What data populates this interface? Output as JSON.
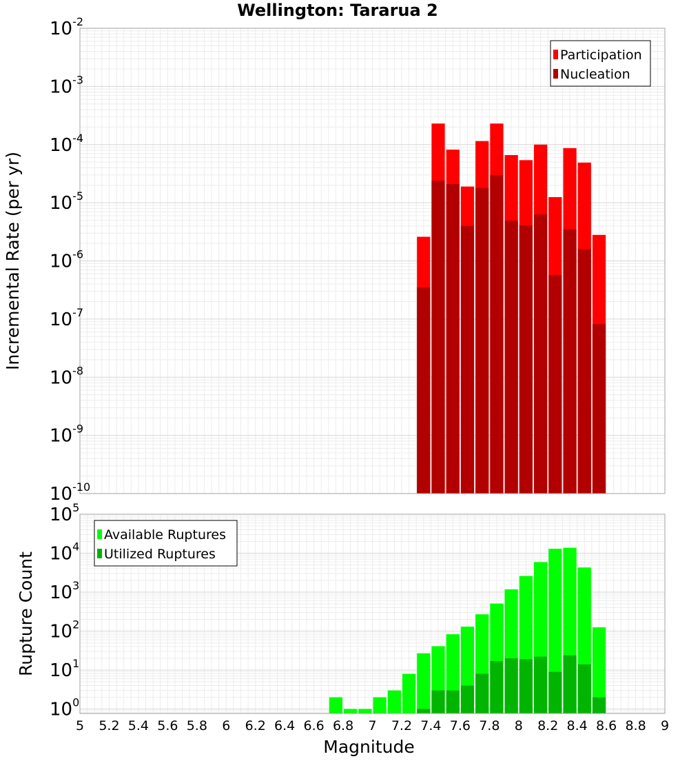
{
  "chart_data": [
    {
      "type": "bar",
      "title": "Wellington: Tararua 2",
      "ylabel": "Incremental Rate (per yr)",
      "xlabel": "",
      "xlim": [
        5,
        9
      ],
      "ylim": [
        1e-10,
        0.01
      ],
      "yscale": "log",
      "grid": true,
      "legend_placement": "top-right",
      "bar_width": 0.1,
      "ytick_labels": [
        {
          "base": "10",
          "exp": "-10"
        },
        {
          "base": "10",
          "exp": "-9"
        },
        {
          "base": "10",
          "exp": "-8"
        },
        {
          "base": "10",
          "exp": "-7"
        },
        {
          "base": "10",
          "exp": "-6"
        },
        {
          "base": "10",
          "exp": "-5"
        },
        {
          "base": "10",
          "exp": "-4"
        },
        {
          "base": "10",
          "exp": "-3"
        },
        {
          "base": "10",
          "exp": "-2"
        }
      ],
      "x": [
        7.35,
        7.45,
        7.55,
        7.65,
        7.75,
        7.85,
        7.95,
        8.05,
        8.15,
        8.25,
        8.35,
        8.45,
        8.55
      ],
      "series": [
        {
          "name": "Participation",
          "color": "#ff0000",
          "values": [
            2.6e-06,
            0.00023,
            8.2e-05,
            1.9e-05,
            0.000115,
            0.00023,
            6.6e-05,
            5.4e-05,
            0.0001,
            1.25e-05,
            8.7e-05,
            4.9e-05,
            2.8e-06
          ]
        },
        {
          "name": "Nucleation",
          "color": "#b20000",
          "values": [
            3.5e-07,
            2.4e-05,
            2.1e-05,
            4e-06,
            1.8e-05,
            3e-05,
            4.9e-06,
            4.1e-06,
            6.3e-06,
            5.7e-07,
            3.5e-06,
            1.6e-06,
            8.2e-08
          ]
        }
      ]
    },
    {
      "type": "bar",
      "title": "",
      "ylabel": "Rupture Count",
      "xlabel": "Magnitude",
      "xlim": [
        5,
        9
      ],
      "ylim": [
        0.77,
        100000.0
      ],
      "yscale": "log",
      "grid": true,
      "legend_placement": "top-left",
      "bar_width": 0.1,
      "ytick_labels": [
        {
          "base": "10",
          "exp": "0"
        },
        {
          "base": "10",
          "exp": "1"
        },
        {
          "base": "10",
          "exp": "2"
        },
        {
          "base": "10",
          "exp": "3"
        },
        {
          "base": "10",
          "exp": "4"
        },
        {
          "base": "10",
          "exp": "5"
        }
      ],
      "xtick_labels": [
        "5",
        "5.2",
        "5.4",
        "5.6",
        "5.8",
        "6",
        "6.2",
        "6.4",
        "6.6",
        "6.8",
        "7",
        "7.2",
        "7.4",
        "7.6",
        "7.8",
        "8",
        "8.2",
        "8.4",
        "8.6",
        "8.8",
        "9"
      ],
      "x": [
        6.75,
        6.85,
        6.95,
        7.05,
        7.15,
        7.25,
        7.35,
        7.45,
        7.55,
        7.65,
        7.75,
        7.85,
        7.95,
        8.05,
        8.15,
        8.25,
        8.35,
        8.45,
        8.55
      ],
      "series": [
        {
          "name": "Available Ruptures",
          "color": "#00ff00",
          "values": [
            2,
            1,
            1,
            2,
            3,
            8,
            27,
            41,
            83,
            130,
            270,
            510,
            1180,
            2600,
            5900,
            13000,
            13800,
            4300,
            125
          ]
        },
        {
          "name": "Utilized Ruptures",
          "color": "#00b400",
          "values": [
            0,
            0,
            0,
            0,
            0,
            0,
            1,
            3,
            3,
            4,
            8,
            17,
            20,
            19,
            22,
            9,
            24,
            14,
            2
          ]
        }
      ]
    }
  ]
}
